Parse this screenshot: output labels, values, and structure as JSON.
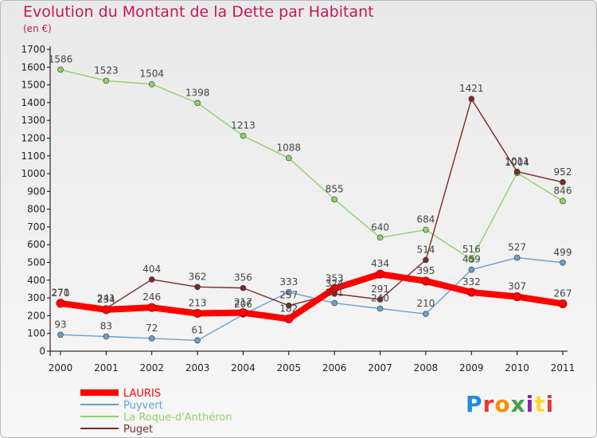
{
  "header": {
    "title": "Evolution du Montant de la Dette par Habitant",
    "unit": "(en €)"
  },
  "logo": {
    "text": "Proxiti",
    "colors": [
      "#1e88e5",
      "#e53935",
      "#fb8c00",
      "#43a047",
      "#8e24aa",
      "#fdd835",
      "#e53935"
    ]
  },
  "chart_data": {
    "type": "line",
    "title": "Evolution du Montant de la Dette par Habitant",
    "ylabel": "(en €)",
    "xlabel": "",
    "x": [
      "2000",
      "2001",
      "2002",
      "2003",
      "2004",
      "2005",
      "2006",
      "2007",
      "2008",
      "2009",
      "2010",
      "2011"
    ],
    "ylim": [
      0,
      1700
    ],
    "yticks": [
      0,
      100,
      200,
      300,
      400,
      500,
      600,
      700,
      800,
      900,
      1000,
      1100,
      1200,
      1300,
      1400,
      1500,
      1600,
      1700
    ],
    "grid": false,
    "legend": "bottom-left",
    "series": [
      {
        "name": "LAURIS",
        "color": "#ff0000",
        "values": [
          270,
          234,
          246,
          213,
          217,
          182,
          353,
          434,
          395,
          332,
          307,
          267
        ]
      },
      {
        "name": "Puyvert",
        "color": "#6a9fd0",
        "values": [
          93,
          83,
          72,
          61,
          206,
          333,
          271,
          240,
          210,
          459,
          527,
          499
        ]
      },
      {
        "name": "La Roque-d'Anthéron",
        "color": "#8fd16a",
        "values": [
          1586,
          1523,
          1504,
          1398,
          1213,
          1088,
          855,
          640,
          684,
          516,
          1004,
          846
        ]
      },
      {
        "name": "Puget",
        "color": "#7a2a2a",
        "values": [
          271,
          241,
          404,
          362,
          356,
          257,
          324,
          291,
          514,
          1421,
          1011,
          952
        ]
      }
    ]
  }
}
